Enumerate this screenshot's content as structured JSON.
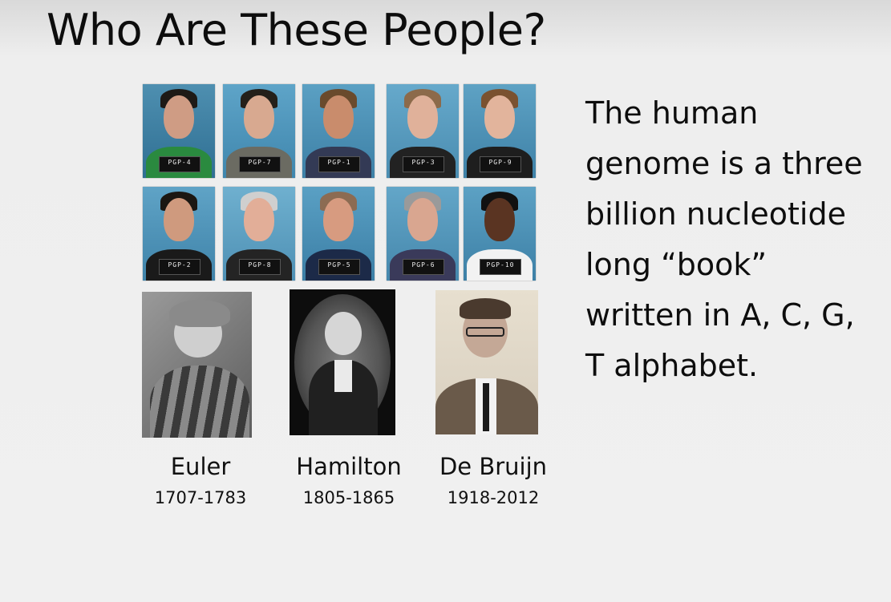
{
  "slide": {
    "title": "Who Are These People?",
    "pgp_participants": [
      {
        "label": "PGP-4"
      },
      {
        "label": "PGP-7"
      },
      {
        "label": "PGP-1"
      },
      {
        "label": "PGP-3"
      },
      {
        "label": "PGP-9"
      },
      {
        "label": "PGP-2"
      },
      {
        "label": "PGP-8"
      },
      {
        "label": "PGP-5"
      },
      {
        "label": "PGP-6"
      },
      {
        "label": "PGP-10"
      }
    ],
    "mathematicians": [
      {
        "name": "Euler",
        "years": "1707-1783"
      },
      {
        "name": "Hamilton",
        "years": "1805-1865"
      },
      {
        "name": "De Bruijn",
        "years": "1918-2012"
      }
    ],
    "description_lines": [
      "The human",
      "genome is a three",
      "billion nucleotide",
      "long “book”",
      "written in A, C, G,",
      "T alphabet."
    ]
  }
}
